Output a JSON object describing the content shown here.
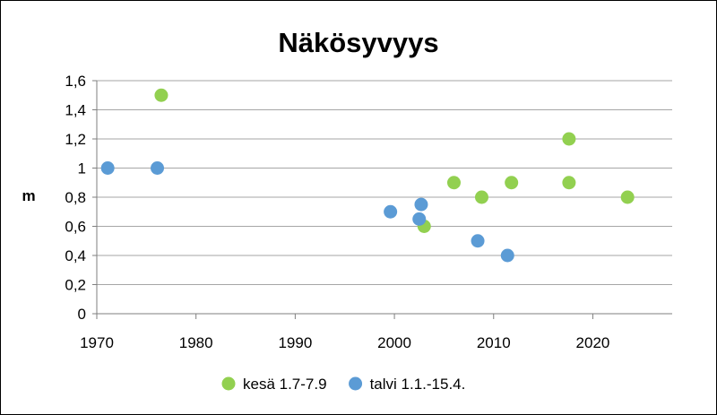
{
  "chart_data": {
    "type": "scatter",
    "title": "Näkösyvyys",
    "xlabel": "",
    "ylabel": "m",
    "xlim": [
      1970,
      2028
    ],
    "ylim": [
      0,
      1.6
    ],
    "x_ticks": [
      1970,
      1980,
      1990,
      2000,
      2010,
      2020
    ],
    "x_tick_labels": [
      "1970",
      "1980",
      "1990",
      "2000",
      "2010",
      "2020"
    ],
    "y_ticks": [
      0,
      0.2,
      0.4,
      0.6,
      0.8,
      1,
      1.2,
      1.4,
      1.6
    ],
    "y_tick_labels": [
      "0",
      "0,2",
      "0,4",
      "0,6",
      "0,8",
      "1",
      "1,2",
      "1,4",
      "1,6"
    ],
    "grid": "horizontal",
    "legend_position": "bottom",
    "series": [
      {
        "name": "kesä 1.7-7.9",
        "color": "#92D050",
        "points": [
          {
            "x": 1976.5,
            "y": 1.5
          },
          {
            "x": 2003.0,
            "y": 0.6
          },
          {
            "x": 2006.0,
            "y": 0.9
          },
          {
            "x": 2008.8,
            "y": 0.8
          },
          {
            "x": 2011.8,
            "y": 0.9
          },
          {
            "x": 2017.6,
            "y": 1.2
          },
          {
            "x": 2017.6,
            "y": 0.9
          },
          {
            "x": 2023.5,
            "y": 0.8
          }
        ]
      },
      {
        "name": "talvi 1.1.-15.4.",
        "color": "#5B9BD5",
        "points": [
          {
            "x": 1971.1,
            "y": 1.0
          },
          {
            "x": 1976.1,
            "y": 1.0
          },
          {
            "x": 1999.6,
            "y": 0.7
          },
          {
            "x": 2002.5,
            "y": 0.65
          },
          {
            "x": 2002.7,
            "y": 0.75
          },
          {
            "x": 2008.4,
            "y": 0.5
          },
          {
            "x": 2011.4,
            "y": 0.4
          }
        ]
      }
    ]
  }
}
